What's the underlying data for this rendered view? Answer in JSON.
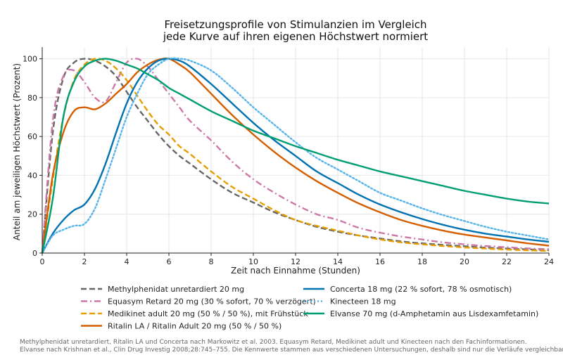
{
  "chart_data": {
    "type": "line",
    "title": "Freisetzungsprofile von Stimulanzien im Vergleich",
    "subtitle": "jede Kurve auf ihren eigenen Höchstwert normiert",
    "xlabel": "Zeit nach Einnahme (Stunden)",
    "ylabel": "Anteil am jeweiligen Höchstwert (Prozent)",
    "xlim": [
      0,
      24
    ],
    "ylim": [
      0,
      106
    ],
    "xticks": [
      0,
      2,
      4,
      6,
      8,
      10,
      12,
      14,
      16,
      18,
      20,
      22,
      24
    ],
    "yticks": [
      0,
      20,
      40,
      60,
      80,
      100
    ],
    "grid": true,
    "legend_position": "bottom",
    "x": [
      0,
      0.5,
      1,
      1.5,
      2,
      2.5,
      3,
      3.5,
      4,
      4.5,
      5,
      5.5,
      6,
      6.5,
      7,
      8,
      9,
      10,
      11,
      12,
      13,
      14,
      15,
      16,
      17,
      18,
      19,
      20,
      21,
      22,
      23,
      24
    ],
    "series": [
      {
        "name": "Methylphenidat unretardiert 20 mg",
        "color": "#666666",
        "dash": "dashed",
        "values": [
          0,
          62,
          90,
          98,
          100,
          99,
          96,
          91,
          83,
          75,
          68,
          61,
          55,
          50,
          46,
          38,
          31,
          26,
          21,
          17,
          13.5,
          11,
          9,
          7.5,
          6,
          5,
          4.2,
          3.5,
          2.8,
          2.3,
          1.9,
          1.5
        ]
      },
      {
        "name": "Equasym Retard 20 mg (30 % sofort, 70 % verzögert)",
        "color": "#cc79a7",
        "dash": "dashdot",
        "values": [
          0,
          68,
          91,
          94,
          88,
          80,
          78,
          88,
          98,
          100,
          96,
          89,
          82,
          75,
          68,
          58,
          47,
          38,
          31,
          25,
          20,
          17,
          13,
          10.5,
          8.5,
          7,
          5.5,
          4.5,
          3.6,
          3,
          2.4,
          2
        ]
      },
      {
        "name": "Medikinet adult 20 mg (50 % / 50 %), mit Frühstück",
        "color": "#e69f00",
        "dash": "dashed",
        "values": [
          0,
          38,
          70,
          89,
          97,
          100,
          99,
          95,
          89,
          81,
          73,
          66,
          61,
          55,
          51,
          42,
          34,
          28,
          22,
          17,
          14,
          11.5,
          9,
          7,
          5.5,
          4.5,
          3.6,
          2.9,
          2.3,
          1.8,
          1.4,
          1.1
        ]
      },
      {
        "name": "Ritalin LA / Ritalin Adult 20 mg (50 % / 50 %)",
        "color": "#d55e00",
        "dash": "solid",
        "values": [
          0,
          40,
          62,
          73,
          75,
          74,
          77,
          82,
          87,
          93,
          97,
          99.5,
          100,
          97,
          93,
          82,
          71,
          61,
          52,
          44,
          37,
          31,
          25.5,
          21,
          17,
          14,
          11.5,
          9.5,
          8,
          6.5,
          5,
          3.8
        ]
      },
      {
        "name": "Concerta 18 mg (22 % sofort, 78 % osmotisch)",
        "color": "#0072b2",
        "dash": "solid",
        "values": [
          0,
          10,
          17,
          22,
          25,
          33,
          46,
          62,
          77,
          88,
          95,
          99,
          100,
          99,
          96,
          87,
          77,
          67,
          58,
          50,
          42,
          36,
          30,
          25,
          21,
          17.5,
          14.5,
          12,
          10,
          8.5,
          7,
          5.8
        ]
      },
      {
        "name": "Kinecteen 18 mg",
        "color": "#56b4e9",
        "dash": "dotted",
        "values": [
          0,
          9,
          12,
          14,
          15,
          23,
          38,
          54,
          70,
          82,
          92,
          97,
          100,
          100,
          99,
          94,
          85,
          75,
          66,
          57,
          49,
          43,
          37,
          31,
          27,
          23,
          19.5,
          16.5,
          13.5,
          11,
          9,
          7
        ]
      },
      {
        "name": "Elvanse 70 mg (d-Amphetamin aus Lisdexamfetamin)",
        "color": "#009e73",
        "dash": "solid",
        "values": [
          0,
          28,
          70,
          88,
          96,
          99,
          100,
          99,
          97,
          95,
          92,
          89,
          85,
          82,
          79,
          73,
          68,
          63,
          59,
          55,
          51.5,
          48,
          45,
          42,
          39.5,
          37,
          34.5,
          32,
          30,
          28,
          26.5,
          25.5
        ]
      }
    ]
  },
  "footnote": {
    "line1": "Methylphenidat unretardiert, Ritalin LA und Concerta nach Markowitz et al. 2003. Equasym Retard, Medikinet adult und Kinecteen nach den Fachinformationen.",
    "line2": "Elvanse nach Krishnan et al., Clin Drug Investig 2008;28:745–755. Die Kennwerte stammen aus verschiedenen Untersuchungen, deshalb sind nur die Verläufe vergleichbar."
  }
}
